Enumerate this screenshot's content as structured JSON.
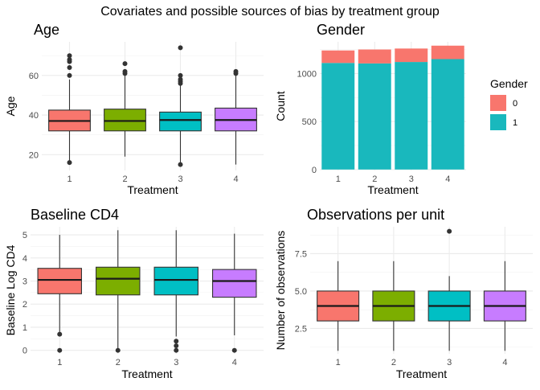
{
  "suptitle": "Covariates and possible sources of bias by treatment group",
  "colors": {
    "1": "#F8766D",
    "2": "#7CAE00",
    "3": "#00BFC4",
    "4": "#C77CFF",
    "gender0": "#F8766D",
    "gender1": "#19B8BD"
  },
  "chart_data": [
    {
      "id": "age",
      "type": "box",
      "title": "Age",
      "xlabel": "Treatment",
      "ylabel": "Age",
      "categories": [
        "1",
        "2",
        "3",
        "4"
      ],
      "ylim": [
        12,
        77
      ],
      "yticks": [
        20,
        40,
        60
      ],
      "boxes": [
        {
          "category": "1",
          "q1": 32,
          "median": 37,
          "q3": 42.5,
          "whisker_low": 16,
          "whisker_high": 58,
          "outliers": [
            16,
            60,
            64,
            67,
            68,
            70
          ]
        },
        {
          "category": "2",
          "q1": 32,
          "median": 37,
          "q3": 43,
          "whisker_low": 19,
          "whisker_high": 60,
          "outliers": [
            61,
            62,
            66
          ]
        },
        {
          "category": "3",
          "q1": 32,
          "median": 37.5,
          "q3": 41.5,
          "whisker_low": 16,
          "whisker_high": 55,
          "outliers": [
            15,
            56,
            57,
            58,
            60,
            74
          ]
        },
        {
          "category": "4",
          "q1": 32,
          "median": 37.5,
          "q3": 43.5,
          "whisker_low": 15,
          "whisker_high": 60,
          "outliers": [
            61,
            62
          ]
        }
      ]
    },
    {
      "id": "gender",
      "type": "bar",
      "stacked": true,
      "title": "Gender",
      "xlabel": "Treatment",
      "ylabel": "Count",
      "categories": [
        "1",
        "2",
        "3",
        "4"
      ],
      "ylim": [
        -10,
        1330
      ],
      "yticks": [
        0,
        500,
        1000
      ],
      "series": [
        {
          "name": "1",
          "color_key": "gender1",
          "values": [
            1110,
            1105,
            1120,
            1150
          ]
        },
        {
          "name": "0",
          "color_key": "gender0",
          "values": [
            130,
            145,
            140,
            140
          ]
        }
      ],
      "legend": {
        "title": "Gender",
        "placement": "right",
        "entries": [
          "0",
          "1"
        ]
      }
    },
    {
      "id": "cd4",
      "type": "box",
      "title": "Baseline CD4",
      "xlabel": "Treatment",
      "ylabel": "Baseline Log CD4",
      "categories": [
        "1",
        "2",
        "3",
        "4"
      ],
      "ylim": [
        -0.15,
        5.35
      ],
      "yticks": [
        0,
        1,
        2,
        3,
        4,
        5
      ],
      "boxes": [
        {
          "category": "1",
          "q1": 2.45,
          "median": 3.05,
          "q3": 3.55,
          "whisker_low": 0.8,
          "whisker_high": 5.0,
          "outliers": [
            0.7,
            0.0
          ]
        },
        {
          "category": "2",
          "q1": 2.4,
          "median": 3.1,
          "q3": 3.6,
          "whisker_low": 0.0,
          "whisker_high": 5.2,
          "outliers": [
            0.0
          ]
        },
        {
          "category": "3",
          "q1": 2.4,
          "median": 3.05,
          "q3": 3.6,
          "whisker_low": 0.6,
          "whisker_high": 5.2,
          "outliers": [
            0.4,
            0.2,
            0.0
          ]
        },
        {
          "category": "4",
          "q1": 2.3,
          "median": 3.0,
          "q3": 3.5,
          "whisker_low": 0.65,
          "whisker_high": 5.05,
          "outliers": [
            0.0
          ]
        }
      ]
    },
    {
      "id": "obs",
      "type": "box",
      "title": "Observations per unit",
      "xlabel": "Treatment",
      "ylabel": "Number of observations",
      "categories": [
        "1",
        "2",
        "3",
        "4"
      ],
      "ylim": [
        0.8,
        9.3
      ],
      "yticks": [
        2.5,
        5.0,
        7.5
      ],
      "ytick_labels": [
        "2.5",
        "5.0",
        "7.5"
      ],
      "boxes": [
        {
          "category": "1",
          "q1": 3,
          "median": 4,
          "q3": 5,
          "whisker_low": 1,
          "whisker_high": 7,
          "outliers": []
        },
        {
          "category": "2",
          "q1": 3,
          "median": 4,
          "q3": 5,
          "whisker_low": 1,
          "whisker_high": 7,
          "outliers": []
        },
        {
          "category": "3",
          "q1": 3,
          "median": 4,
          "q3": 5,
          "whisker_low": 1,
          "whisker_high": 6,
          "outliers": [
            9
          ]
        },
        {
          "category": "4",
          "q1": 3,
          "median": 4,
          "q3": 5,
          "whisker_low": 1,
          "whisker_high": 7,
          "outliers": []
        }
      ]
    }
  ]
}
